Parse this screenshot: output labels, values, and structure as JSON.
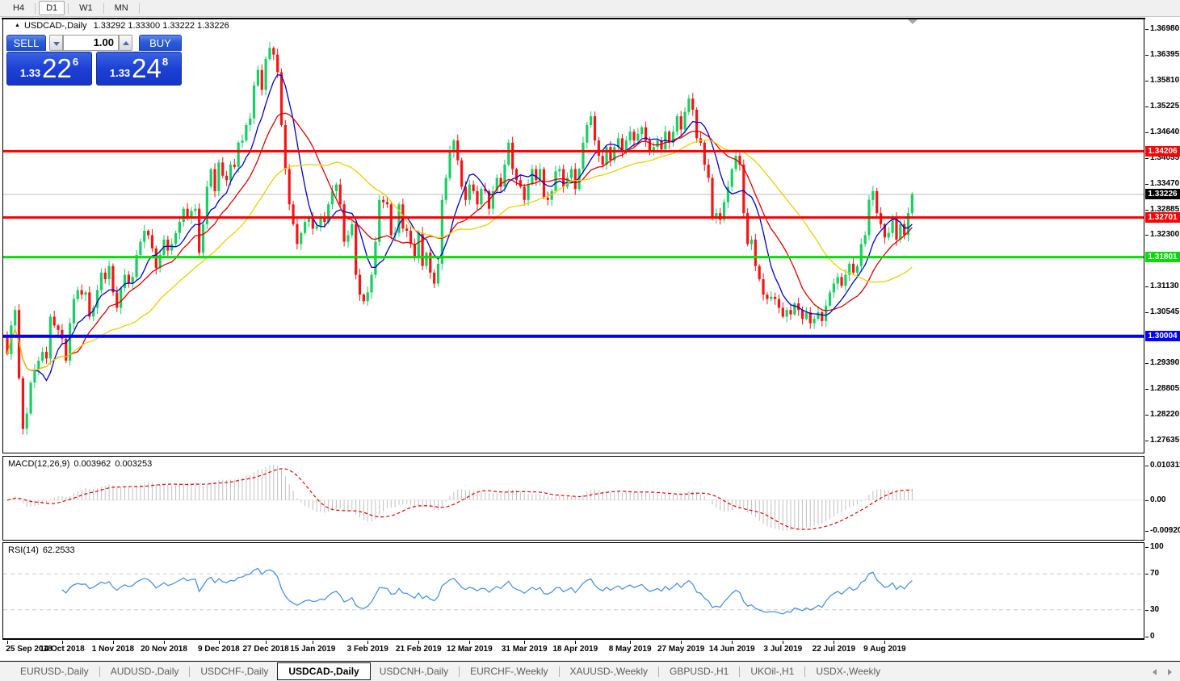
{
  "toolbar": {
    "timeframes": [
      {
        "label": "H4",
        "active": false
      },
      {
        "label": "D1",
        "active": true
      },
      {
        "label": "W1",
        "active": false
      },
      {
        "label": "MN",
        "active": false
      }
    ]
  },
  "chart": {
    "marker": "▲",
    "symbol_title": "USDCAD-,Daily",
    "ohlc_text": "1.33292 1.33300 1.33222 1.33226"
  },
  "trade_panel": {
    "sell_label": "SELL",
    "buy_label": "BUY",
    "volume": "1.00",
    "sell_price_small": "1.33",
    "sell_price_big": "22",
    "sell_price_sup": "6",
    "buy_price_small": "1.33",
    "buy_price_big": "24",
    "buy_price_sup": "8"
  },
  "price_scale": {
    "labels": [
      {
        "text": "1.36980",
        "value": 1.3698
      },
      {
        "text": "1.36395",
        "value": 1.36395
      },
      {
        "text": "1.35810",
        "value": 1.3581
      },
      {
        "text": "1.35225",
        "value": 1.35225
      },
      {
        "text": "1.34640",
        "value": 1.3464
      },
      {
        "text": "1.34055",
        "value": 1.34055
      },
      {
        "text": "1.33470",
        "value": 1.3347
      },
      {
        "text": "1.32885",
        "value": 1.32885
      },
      {
        "text": "1.32300",
        "value": 1.323
      },
      {
        "text": "1.31715",
        "value": 1.31715
      },
      {
        "text": "1.31130",
        "value": 1.3113
      },
      {
        "text": "1.30545",
        "value": 1.30545
      },
      {
        "text": "1.29390",
        "value": 1.2939
      },
      {
        "text": "1.28805",
        "value": 1.28805
      },
      {
        "text": "1.28220",
        "value": 1.2822
      },
      {
        "text": "1.27635",
        "value": 1.27635
      }
    ]
  },
  "hlines": [
    {
      "price": 1.34206,
      "label": "1.34206",
      "color": "#ff0000",
      "thickness": 3
    },
    {
      "price": 1.32701,
      "label": "1.32701",
      "color": "#ff0000",
      "thickness": 3
    },
    {
      "price": 1.31801,
      "label": "1.31801",
      "color": "#00dd00",
      "thickness": 3
    },
    {
      "price": 1.30004,
      "label": "1.30004",
      "color": "#0000ff",
      "thickness": 4
    }
  ],
  "current_price": {
    "price": 1.33226,
    "label": "1.33226",
    "line_color": "#bcbcbc",
    "tag_color": "#000000"
  },
  "chart_data": {
    "type": "candlestick",
    "symbol": "USDCAD",
    "timeframe": "Daily",
    "price_range": {
      "min": 1.2738,
      "max": 1.372
    },
    "up_color": "#17cf63",
    "down_color": "#f51515",
    "wick_amp": 0.0011,
    "first_open": 1.3,
    "closes": [
      1.296,
      1.3025,
      1.306,
      1.2905,
      1.279,
      1.2825,
      1.2895,
      1.2925,
      1.2945,
      1.2965,
      1.295,
      1.3045,
      1.3025,
      1.3015,
      1.2995,
      1.2945,
      1.303,
      1.3085,
      1.3105,
      1.3095,
      1.31,
      1.3045,
      1.3065,
      1.3105,
      1.3145,
      1.313,
      1.316,
      1.31,
      1.3065,
      1.311,
      1.314,
      1.312,
      1.3135,
      1.3185,
      1.3215,
      1.324,
      1.323,
      1.32,
      1.3155,
      1.3185,
      1.322,
      1.3195,
      1.321,
      1.3235,
      1.326,
      1.329,
      1.327,
      1.3285,
      1.329,
      1.319,
      1.3255,
      1.334,
      1.338,
      1.333,
      1.3395,
      1.3365,
      1.3355,
      1.339,
      1.3385,
      1.344,
      1.3445,
      1.348,
      1.3495,
      1.357,
      1.3605,
      1.356,
      1.363,
      1.3655,
      1.364,
      1.36,
      1.348,
      1.338,
      1.33,
      1.3255,
      1.321,
      1.3235,
      1.326,
      1.327,
      1.3245,
      1.325,
      1.327,
      1.326,
      1.33,
      1.333,
      1.3345,
      1.33,
      1.3215,
      1.323,
      1.3255,
      1.314,
      1.3095,
      1.308,
      1.31,
      1.314,
      1.3215,
      1.331,
      1.3305,
      1.33,
      1.323,
      1.3235,
      1.33,
      1.3245,
      1.324,
      1.321,
      1.318,
      1.3235,
      1.316,
      1.319,
      1.3145,
      1.312,
      1.3165,
      1.331,
      1.336,
      1.342,
      1.3445,
      1.34,
      1.334,
      1.331,
      1.3345,
      1.333,
      1.33,
      1.3335,
      1.333,
      1.329,
      1.333,
      1.336,
      1.334,
      1.339,
      1.344,
      1.338,
      1.3355,
      1.334,
      1.331,
      1.3345,
      1.338,
      1.3355,
      1.338,
      1.3315,
      1.331,
      1.333,
      1.3375,
      1.338,
      1.334,
      1.336,
      1.338,
      1.3335,
      1.338,
      1.344,
      1.348,
      1.35,
      1.3445,
      1.341,
      1.339,
      1.343,
      1.34,
      1.343,
      1.345,
      1.342,
      1.3445,
      1.3465,
      1.3445,
      1.346,
      1.3475,
      1.3445,
      1.342,
      1.343,
      1.3445,
      1.3425,
      1.3465,
      1.344,
      1.3465,
      1.35,
      1.347,
      1.351,
      1.354,
      1.3515,
      1.345,
      1.344,
      1.339,
      1.336,
      1.327,
      1.328,
      1.3265,
      1.3305,
      1.334,
      1.338,
      1.341,
      1.339,
      1.328,
      1.321,
      1.322,
      1.316,
      1.313,
      1.3095,
      1.3085,
      1.309,
      1.3085,
      1.3065,
      1.3045,
      1.306,
      1.305,
      1.3075,
      1.306,
      1.304,
      1.3055,
      1.303,
      1.304,
      1.3055,
      1.3035,
      1.307,
      1.31,
      1.312,
      1.3135,
      1.3115,
      1.314,
      1.3165,
      1.3145,
      1.316,
      1.321,
      1.323,
      1.331,
      1.333,
      1.328,
      1.3255,
      1.3225,
      1.3235,
      1.327,
      1.322,
      1.3255,
      1.323,
      1.328,
      1.3323
    ],
    "date_labels": [
      {
        "label": "25 Sep 2018",
        "index": 0
      },
      {
        "label": "14 Oct 2018",
        "index": 14
      },
      {
        "label": "1 Nov 2018",
        "index": 27
      },
      {
        "label": "20 Nov 2018",
        "index": 40
      },
      {
        "label": "9 Dec 2018",
        "index": 54
      },
      {
        "label": "27 Dec 2018",
        "index": 66
      },
      {
        "label": "15 Jan 2019",
        "index": 78
      },
      {
        "label": "3 Feb 2019",
        "index": 92
      },
      {
        "label": "21 Feb 2019",
        "index": 105
      },
      {
        "label": "12 Mar 2019",
        "index": 118
      },
      {
        "label": "31 Mar 2019",
        "index": 132
      },
      {
        "label": "18 Apr 2019",
        "index": 145
      },
      {
        "label": "8 May 2019",
        "index": 159
      },
      {
        "label": "27 May 2019",
        "index": 172
      },
      {
        "label": "14 Jun 2019",
        "index": 185
      },
      {
        "label": "3 Jul 2019",
        "index": 198
      },
      {
        "label": "22 Jul 2019",
        "index": 211
      },
      {
        "label": "9 Aug 2019",
        "index": 224
      }
    ],
    "moving_averages": [
      {
        "period": 8,
        "color": "#0000cc"
      },
      {
        "period": 16,
        "color": "#dd0000"
      },
      {
        "period": 34,
        "color": "#e8d200"
      }
    ],
    "macd": {
      "label": "MACD(12,26,9)",
      "fast": 12,
      "slow": 26,
      "signal": 9,
      "value_main": "0.003962",
      "value_signal": "0.003253",
      "hist_color": "#c0c0c0",
      "signal_color": "#e00000",
      "scale_labels": [
        {
          "text": "0.010311",
          "value": 0.010311
        },
        {
          "text": "0.00",
          "value": 0
        },
        {
          "text": "-0.009203",
          "value": -0.009203
        }
      ]
    },
    "rsi": {
      "label": "RSI(14)",
      "period": 14,
      "value": "62.2533",
      "color": "#3f8cde",
      "level_labels": [
        {
          "text": "100",
          "value": 100
        },
        {
          "text": "70",
          "value": 70
        },
        {
          "text": "30",
          "value": 30
        },
        {
          "text": "0",
          "value": 0
        }
      ],
      "dashed_levels": [
        70,
        30
      ]
    }
  },
  "tabs": {
    "items": [
      {
        "label": "EURUSD-,Daily",
        "active": false
      },
      {
        "label": "AUDUSD-,Daily",
        "active": false
      },
      {
        "label": "USDCHF-,Daily",
        "active": false
      },
      {
        "label": "USDCAD-,Daily",
        "active": true
      },
      {
        "label": "USDCNH-,Daily",
        "active": false
      },
      {
        "label": "EURCHF-,Weekly",
        "active": false
      },
      {
        "label": "XAUUSD-,Weekly",
        "active": false
      },
      {
        "label": "GBPUSD-,H1",
        "active": false
      },
      {
        "label": "UKOil-,H1",
        "active": false
      },
      {
        "label": "USDX-,Weekly",
        "active": false
      }
    ]
  }
}
